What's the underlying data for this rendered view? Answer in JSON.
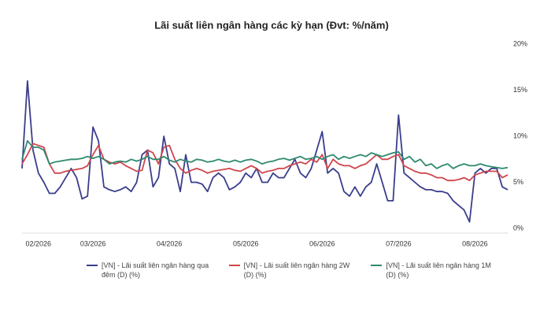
{
  "chart_data": {
    "type": "line",
    "title": "Lãi suất liên ngân hàng các kỳ hạn (Đvt: %/năm)",
    "categories": [
      null,
      null,
      null,
      "02/2026",
      null,
      null,
      null,
      null,
      null,
      null,
      null,
      null,
      null,
      "03/2026",
      null,
      null,
      null,
      null,
      null,
      null,
      null,
      null,
      null,
      null,
      null,
      null,
      null,
      "04/2026",
      null,
      null,
      null,
      null,
      null,
      null,
      null,
      null,
      null,
      null,
      null,
      null,
      null,
      "05/2026",
      null,
      null,
      null,
      null,
      null,
      null,
      null,
      null,
      null,
      null,
      null,
      null,
      null,
      "06/2026",
      null,
      null,
      null,
      null,
      null,
      null,
      null,
      null,
      null,
      null,
      null,
      null,
      null,
      "07/2026",
      null,
      null,
      null,
      null,
      null,
      null,
      null,
      null,
      null,
      null,
      null,
      null,
      null,
      "08/2026",
      null,
      null,
      null,
      null,
      null,
      null
    ],
    "series": [
      {
        "name": "[VN] - Lãi suất liên ngân hàng qua đêm (D) (%)",
        "color": "#3a3d8c",
        "values": [
          6.5,
          16,
          8.5,
          6,
          5,
          3.8,
          3.8,
          4.5,
          5.5,
          6.5,
          5.5,
          3.2,
          3.5,
          11,
          9.5,
          4.5,
          4.2,
          4,
          4.2,
          4.5,
          4,
          5,
          8,
          8.5,
          4.5,
          5.5,
          10,
          7,
          6.5,
          4,
          8,
          5,
          5,
          4.8,
          4,
          5.5,
          6,
          5.5,
          4.2,
          4.5,
          5,
          6,
          5.5,
          6.5,
          5,
          5,
          6,
          5.5,
          5.5,
          6.5,
          7.5,
          6,
          5.5,
          6.5,
          8.5,
          10.5,
          6,
          6.5,
          6,
          4,
          3.5,
          4.5,
          3.5,
          4.5,
          5,
          7,
          5,
          3,
          3,
          12.3,
          6,
          5.5,
          5,
          4.5,
          4.2,
          4.2,
          4,
          4,
          3.8,
          3,
          2.5,
          2,
          0.7,
          6,
          6.5,
          6,
          6.5,
          6.5,
          4.5,
          4.2
        ]
      },
      {
        "name": "[VN] - Lãi suất liên ngân hàng 2W (D) (%)",
        "color": "#d0454c",
        "values": [
          7,
          8,
          9.2,
          9,
          8.8,
          7,
          6,
          6,
          6.2,
          6.3,
          6.4,
          6.5,
          6.8,
          8,
          9,
          7.5,
          7.2,
          7,
          7.2,
          6.8,
          6.5,
          6.2,
          6.3,
          8.5,
          8.2,
          7,
          8.8,
          9,
          7.5,
          6.5,
          6,
          6.3,
          6.5,
          6.3,
          6,
          6.2,
          6.3,
          6.4,
          6.5,
          6.3,
          6.2,
          6.5,
          6.8,
          6.5,
          6,
          6.2,
          6.3,
          6.5,
          6.5,
          6.8,
          7,
          7.2,
          7,
          7.5,
          7.2,
          8,
          6.5,
          7.5,
          7,
          6.8,
          6.8,
          6.5,
          6.8,
          7,
          7.5,
          8,
          7.5,
          7.5,
          7.8,
          8,
          6.8,
          6.5,
          6.2,
          6,
          6,
          5.8,
          5.5,
          5.5,
          5.2,
          5.2,
          5.3,
          5.5,
          5.2,
          5.8,
          6,
          6.2,
          6.2,
          6.2,
          5.5,
          5.8
        ]
      },
      {
        "name": "[VN] - Lãi suất liên ngân hàng 1M (D) (%)",
        "color": "#2f8a6f",
        "values": [
          7.5,
          9.5,
          8.8,
          8.8,
          8.5,
          7,
          7.2,
          7.3,
          7.4,
          7.5,
          7.5,
          7.6,
          7.8,
          7.6,
          7.8,
          7.5,
          7,
          7.2,
          7.3,
          7.2,
          7.5,
          7.3,
          7.5,
          7.8,
          7.5,
          7.5,
          7.8,
          7.4,
          7.2,
          7.5,
          7.3,
          7.2,
          7.5,
          7.4,
          7.2,
          7.3,
          7.5,
          7.3,
          7.2,
          7.4,
          7.2,
          7.4,
          7.5,
          7.3,
          7,
          7.2,
          7.3,
          7.5,
          7.6,
          7.4,
          7.6,
          7.8,
          7.5,
          7.6,
          7.8,
          7.5,
          7.8,
          8,
          7.5,
          7.8,
          7.6,
          7.8,
          8,
          7.8,
          8.2,
          8,
          7.8,
          8,
          8.2,
          8.3,
          7.5,
          7.8,
          7.2,
          7.5,
          6.8,
          7,
          6.5,
          6.8,
          7,
          6.5,
          6.8,
          7,
          6.8,
          6.8,
          7,
          6.8,
          6.7,
          6.6,
          6.5,
          6.6
        ]
      }
    ],
    "ylim": [
      0,
      20
    ],
    "yticks": [
      {
        "value": 0,
        "label": "0%"
      },
      {
        "value": 5,
        "label": "5%"
      },
      {
        "value": 10,
        "label": "10%"
      },
      {
        "value": 15,
        "label": "15%"
      },
      {
        "value": 20,
        "label": "20%"
      }
    ],
    "grid": false
  }
}
